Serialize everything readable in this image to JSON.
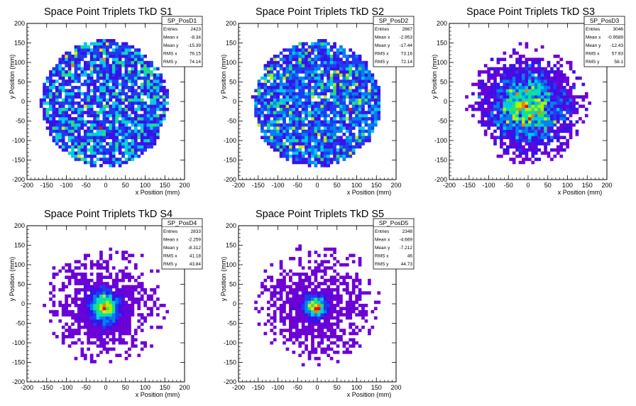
{
  "colors": {
    "palette": [
      "#6b00d6",
      "#3a10e8",
      "#1d3cf0",
      "#0080f0",
      "#00c8e8",
      "#00e0b0",
      "#30e060",
      "#b0f000",
      "#f0e000",
      "#f08000",
      "#e81010"
    ],
    "axis": "#000000",
    "background": "#ffffff"
  },
  "chart_data": [
    {
      "type": "heatmap",
      "title": "Space Point Triplets TkD S1",
      "xlabel": "x Position (mm)",
      "ylabel": "y Position (mm)",
      "xlim": [
        -200,
        200
      ],
      "ylim": [
        -200,
        200
      ],
      "xticks": [
        -200,
        -150,
        -100,
        -50,
        0,
        50,
        100,
        150,
        200
      ],
      "yticks": [
        -200,
        -150,
        -100,
        -50,
        0,
        50,
        100,
        150,
        200
      ],
      "bins": 50,
      "distribution": "uniform-disk",
      "disk_radius": 160,
      "stats": {
        "name": "SP_PosD1",
        "rows": [
          {
            "label": "Entries",
            "value": "2423"
          },
          {
            "label": "Mean x",
            "value": "-8.34"
          },
          {
            "label": "Mean y",
            "value": "-15.39"
          },
          {
            "label": "RMS x",
            "value": "76.15"
          },
          {
            "label": "RMS y",
            "value": "74.14"
          }
        ]
      }
    },
    {
      "type": "heatmap",
      "title": "Space Point Triplets TkD S2",
      "xlabel": "x Position (mm)",
      "ylabel": "y Position (mm)",
      "xlim": [
        -200,
        200
      ],
      "ylim": [
        -200,
        200
      ],
      "xticks": [
        -200,
        -150,
        -100,
        -50,
        0,
        50,
        100,
        150,
        200
      ],
      "yticks": [
        -200,
        -150,
        -100,
        -50,
        0,
        50,
        100,
        150,
        200
      ],
      "bins": 50,
      "distribution": "uniform-disk",
      "disk_radius": 160,
      "stats": {
        "name": "SP_PosD2",
        "rows": [
          {
            "label": "Entries",
            "value": "2867"
          },
          {
            "label": "Mean x",
            "value": "-2.953"
          },
          {
            "label": "Mean y",
            "value": "-17.44"
          },
          {
            "label": "RMS x",
            "value": "73.16"
          },
          {
            "label": "RMS y",
            "value": "72.14"
          }
        ]
      }
    },
    {
      "type": "heatmap",
      "title": "Space Point Triplets TkD S3",
      "xlabel": "x Position (mm)",
      "ylabel": "y Position (mm)",
      "xlim": [
        -200,
        200
      ],
      "ylim": [
        -200,
        200
      ],
      "xticks": [
        -200,
        -150,
        -100,
        -50,
        0,
        50,
        100,
        150,
        200
      ],
      "yticks": [
        -200,
        -150,
        -100,
        -50,
        0,
        50,
        100,
        150,
        200
      ],
      "bins": 50,
      "distribution": "broad-gaussian",
      "disk_radius": 160,
      "stats": {
        "name": "SP_PosD3",
        "rows": [
          {
            "label": "Entries",
            "value": "3046"
          },
          {
            "label": "Mean x",
            "value": "-0.9589"
          },
          {
            "label": "Mean y",
            "value": "-12.43"
          },
          {
            "label": "RMS x",
            "value": "57.93"
          },
          {
            "label": "RMS y",
            "value": "58.1"
          }
        ]
      }
    },
    {
      "type": "heatmap",
      "title": "Space Point Triplets TkD S4",
      "xlabel": "x Position (mm)",
      "ylabel": "y Position (mm)",
      "xlim": [
        -200,
        200
      ],
      "ylim": [
        -200,
        200
      ],
      "xticks": [
        -200,
        -150,
        -100,
        -50,
        0,
        50,
        100,
        150,
        200
      ],
      "yticks": [
        -200,
        -150,
        -100,
        -50,
        0,
        50,
        100,
        150,
        200
      ],
      "bins": 50,
      "distribution": "gaussian-core",
      "disk_radius": 160,
      "stats": {
        "name": "SP_PosD4",
        "rows": [
          {
            "label": "Entries",
            "value": "2833"
          },
          {
            "label": "Mean x",
            "value": "-2.259"
          },
          {
            "label": "Mean y",
            "value": "-8.312"
          },
          {
            "label": "RMS x",
            "value": "41.18"
          },
          {
            "label": "RMS y",
            "value": "43.84"
          }
        ]
      }
    },
    {
      "type": "heatmap",
      "title": "Space Point Triplets TkD S5",
      "xlabel": "x Position (mm)",
      "ylabel": "y Position (mm)",
      "xlim": [
        -200,
        200
      ],
      "ylim": [
        -200,
        200
      ],
      "xticks": [
        -200,
        -150,
        -100,
        -50,
        0,
        50,
        100,
        150,
        200
      ],
      "yticks": [
        -200,
        -150,
        -100,
        -50,
        0,
        50,
        100,
        150,
        200
      ],
      "bins": 50,
      "distribution": "narrow-core",
      "disk_radius": 160,
      "stats": {
        "name": "SP_PosD5",
        "rows": [
          {
            "label": "Entries",
            "value": "2348"
          },
          {
            "label": "Mean x",
            "value": "-4.669"
          },
          {
            "label": "Mean y",
            "value": "-7.212"
          },
          {
            "label": "RMS x",
            "value": "46"
          },
          {
            "label": "RMS y",
            "value": "44.73"
          }
        ]
      }
    }
  ]
}
